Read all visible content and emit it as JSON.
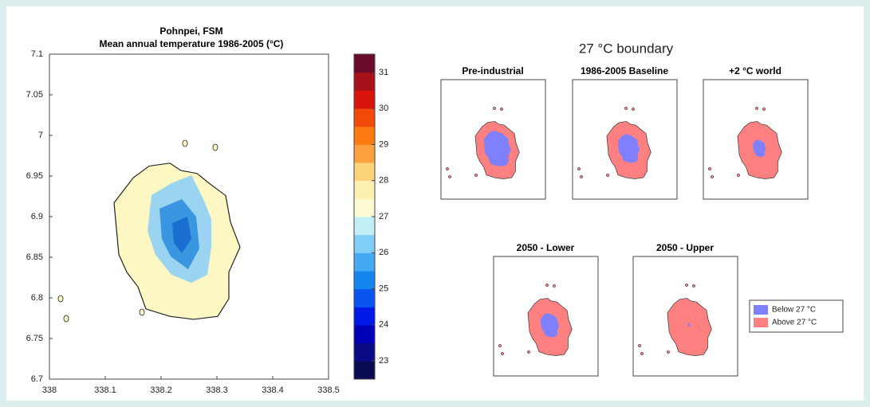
{
  "left_map": {
    "title": [
      "Pohnpei, FSM",
      "Mean annual temperature 1986-2005 (°C)"
    ],
    "xticks": [
      338,
      338.1,
      338.2,
      338.3,
      338.4,
      338.5
    ],
    "yticks": [
      6.7,
      6.75,
      6.8,
      6.85,
      6.9,
      6.95,
      7,
      7.05,
      7.1
    ],
    "colorbar_ticks": [
      23,
      24,
      25,
      26,
      27,
      28,
      29,
      30,
      31
    ]
  },
  "right_figure": {
    "title": "27 °C boundary",
    "panels": [
      {
        "title": "Pre-industrial"
      },
      {
        "title": "1986-2005 Baseline"
      },
      {
        "title": "+2 °C world"
      },
      {
        "title": "2050 - Lower"
      },
      {
        "title": "2050 - Upper"
      }
    ],
    "legend": [
      {
        "label": "Below 27 °C",
        "color": "#8080ff"
      },
      {
        "label": "Above 27 °C",
        "color": "#ff8080"
      }
    ]
  }
}
